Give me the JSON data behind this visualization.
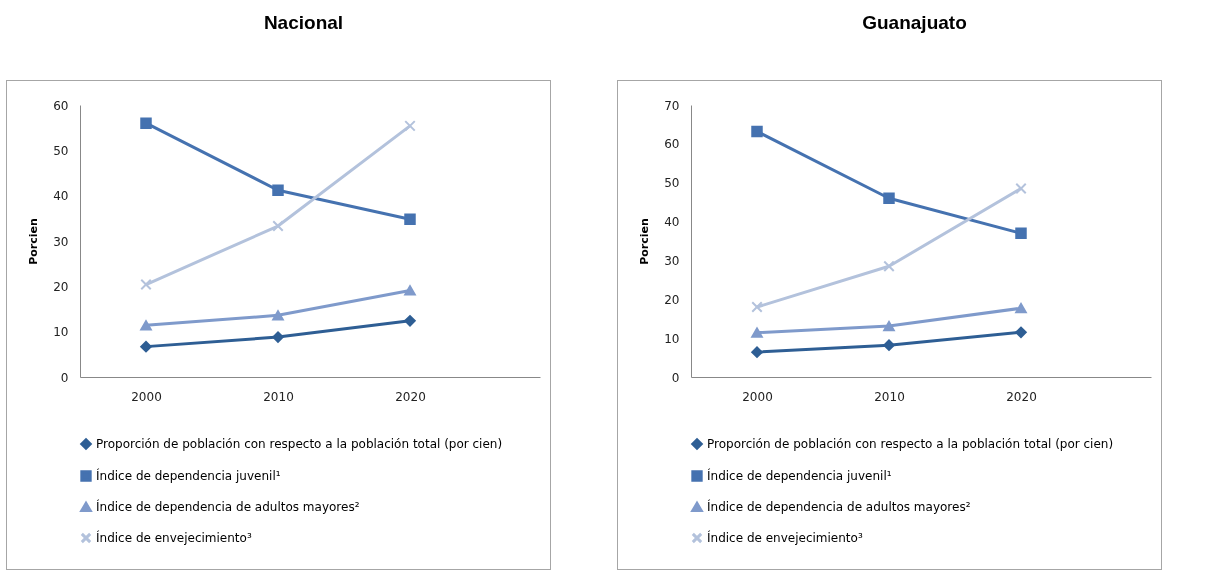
{
  "chart_data": [
    {
      "type": "line",
      "title": "Nacional",
      "ylabel": "Porcien",
      "categories": [
        "2000",
        "2010",
        "2020"
      ],
      "ylim": [
        0,
        60
      ],
      "yticks": [
        0,
        10,
        20,
        30,
        40,
        50,
        60
      ],
      "legend": "bottom",
      "series": [
        {
          "name": "Proporción de población con respecto a la población total (por cien)",
          "color": "#2e5e94",
          "marker": "diamond",
          "values": [
            6.7,
            8.8,
            12.4
          ]
        },
        {
          "name": "Índice de dependencia juvenil¹",
          "color": "#4572b0",
          "marker": "square",
          "values": [
            56.0,
            41.2,
            34.8
          ]
        },
        {
          "name": "Índice de dependencia de adultos mayores²",
          "color": "#7f9acb",
          "marker": "triangle",
          "values": [
            11.4,
            13.6,
            19.1
          ]
        },
        {
          "name": "Índice de envejecimiento³",
          "color": "#b3c2dc",
          "marker": "cross",
          "values": [
            20.4,
            33.3,
            55.4
          ]
        }
      ]
    },
    {
      "type": "line",
      "title": "Guanajuato",
      "ylabel": "Porcien",
      "categories": [
        "2000",
        "2010",
        "2020"
      ],
      "ylim": [
        0,
        70
      ],
      "yticks": [
        0,
        10,
        20,
        30,
        40,
        50,
        60,
        70
      ],
      "legend": "bottom",
      "series": [
        {
          "name": "Proporción de población con respecto a la población total (por cien)",
          "color": "#2e5e94",
          "marker": "diamond",
          "values": [
            6.4,
            8.2,
            11.5
          ]
        },
        {
          "name": "Índice de dependencia juvenil¹",
          "color": "#4572b0",
          "marker": "square",
          "values": [
            63.2,
            46.0,
            37.0
          ]
        },
        {
          "name": "Índice de dependencia de adultos mayores²",
          "color": "#7f9acb",
          "marker": "triangle",
          "values": [
            11.4,
            13.1,
            17.7
          ]
        },
        {
          "name": "Índice de envejecimiento³",
          "color": "#b3c2dc",
          "marker": "cross",
          "values": [
            18.0,
            28.5,
            48.5
          ]
        }
      ]
    }
  ]
}
